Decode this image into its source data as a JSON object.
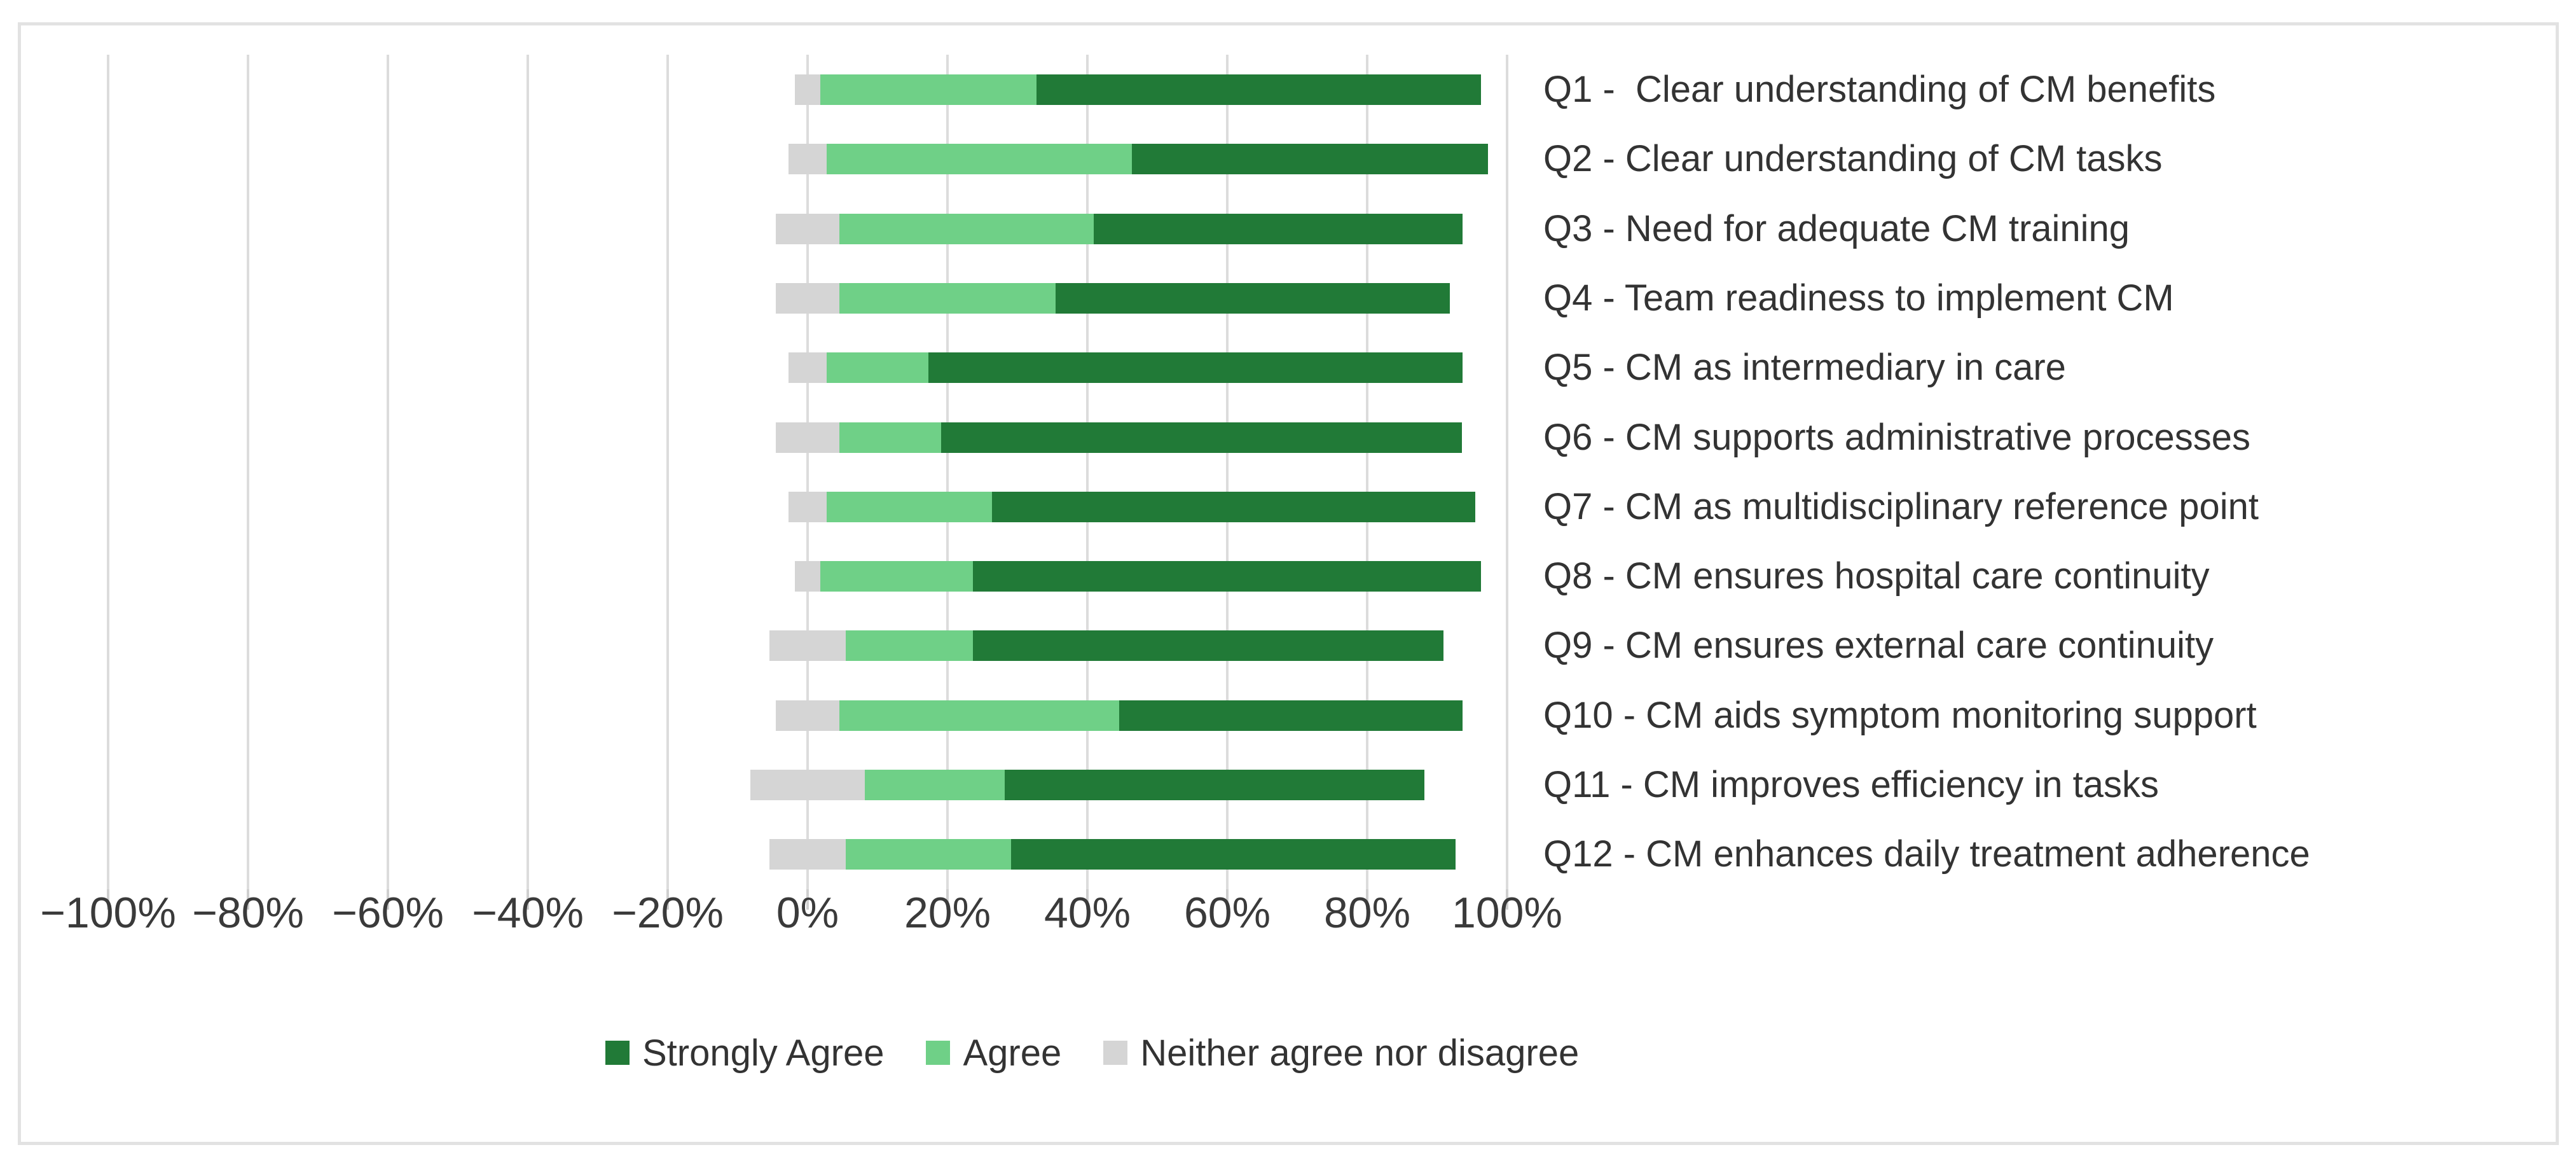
{
  "chart_data": {
    "type": "bar",
    "variant": "horizontal-diverging-stacked-likert",
    "title": "",
    "categories": [
      "Q1 -  Clear understanding of CM benefits",
      "Q2 - Clear understanding of CM tasks",
      "Q3 - Need for adequate CM training",
      "Q4 - Team readiness to implement CM",
      "Q5 - CM as intermediary in care",
      "Q6 - CM supports administrative processes",
      "Q7 - CM as multidisciplinary reference point",
      "Q8 - CM ensures hospital care continuity",
      "Q9 - CM ensures external care continuity",
      "Q10 - CM aids symptom monitoring support",
      "Q11 - CM improves efficiency in tasks",
      "Q12 - CM enhances daily treatment adherence"
    ],
    "series": [
      {
        "name": "Strongly Agree",
        "color": "#217a37",
        "values": [
          63.6,
          50.9,
          52.7,
          56.4,
          76.4,
          74.5,
          69.1,
          72.7,
          67.3,
          49.1,
          60.0,
          63.6
        ]
      },
      {
        "name": "Agree",
        "color": "#6fd087",
        "values": [
          30.9,
          43.6,
          36.4,
          30.9,
          14.5,
          14.5,
          23.6,
          21.8,
          18.2,
          40.0,
          20.0,
          23.6
        ]
      },
      {
        "name": "Neither agree nor disagree",
        "color": "#d5d5d5",
        "values": [
          3.6,
          5.5,
          9.1,
          9.1,
          5.5,
          9.1,
          5.5,
          3.6,
          10.9,
          9.1,
          16.4,
          10.9
        ]
      }
    ],
    "stacking_note": "neutral segment is centered on 0; Agree then Strongly Agree stack to the right",
    "x_axis": {
      "range": [
        -100,
        100
      ],
      "tick_values": [
        -100,
        -80,
        -60,
        -40,
        -20,
        0,
        20,
        40,
        60,
        80,
        100
      ],
      "tick_labels": [
        "−100%",
        "−80%",
        "−60%",
        "−40%",
        "−20%",
        "0%",
        "20%",
        "40%",
        "60%",
        "80%",
        "100%"
      ],
      "gridlines": true
    },
    "legend": {
      "position": "bottom",
      "entries": [
        "Strongly Agree",
        "Agree",
        "Neither agree nor disagree"
      ]
    }
  },
  "colors": {
    "background": "#ffffff",
    "figure_border": "#e2e2e2",
    "gridline": "#dcdcdc",
    "tick": "#cfcfcf",
    "axis_text": "#3a3a3a",
    "category_text": "#333333"
  }
}
